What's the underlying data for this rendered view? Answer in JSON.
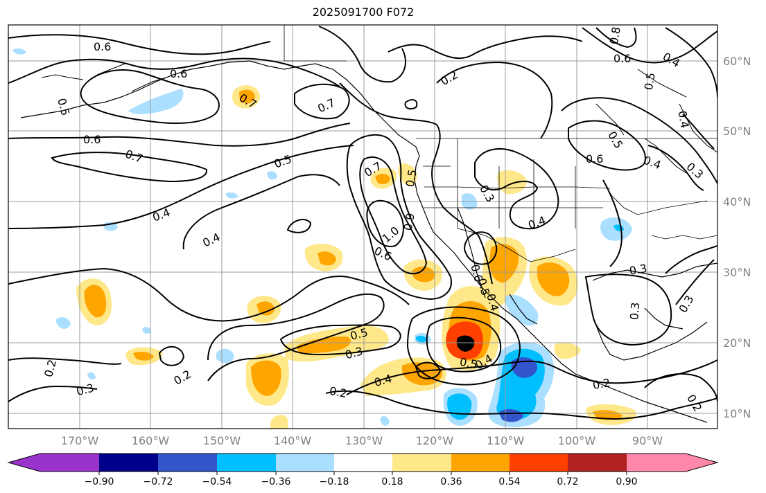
{
  "title": "2025091700 F072",
  "lat_labels": [
    "60°N",
    "50°N",
    "40°N",
    "30°N",
    "20°N",
    "10°N"
  ],
  "lon_labels": [
    "170°W",
    "160°W",
    "150°W",
    "140°W",
    "130°W",
    "120°W",
    "110°W",
    "100°W",
    "90°W"
  ],
  "colorbar": {
    "colors": [
      "#9933cc",
      "#00008b",
      "#3355cc",
      "#00bfff",
      "#aadfff",
      "#ffffff",
      "#ffe88a",
      "#ffa500",
      "#ff4000",
      "#b22222",
      "#ff88aa"
    ],
    "ticks": [
      "−0.90",
      "−0.72",
      "−0.54",
      "−0.36",
      "−0.18",
      "0.18",
      "0.36",
      "0.54",
      "0.72",
      "0.90"
    ]
  },
  "contour_labels": [
    "0.6",
    "0.6",
    "0.5",
    "0.7",
    "0.7",
    "0.6",
    "0.7",
    "0.5",
    "0.4",
    "0.4",
    "0.7",
    "1.0",
    "0.9",
    "0.5",
    "0.6",
    "0.2",
    "0.3",
    "0.4",
    "0.6",
    "0.5",
    "0.4",
    "0.2",
    "0.3",
    "0.5",
    "0.3",
    "0.4",
    "0.2",
    "0.5",
    "0.4",
    "0.2",
    "0.3",
    "0.2",
    "0.3",
    "0.3",
    "0.4",
    "0.6",
    "0.5",
    "0.6",
    "0.4",
    "0.5",
    "0.4",
    "0.8",
    "0.3",
    "0.2"
  ]
}
